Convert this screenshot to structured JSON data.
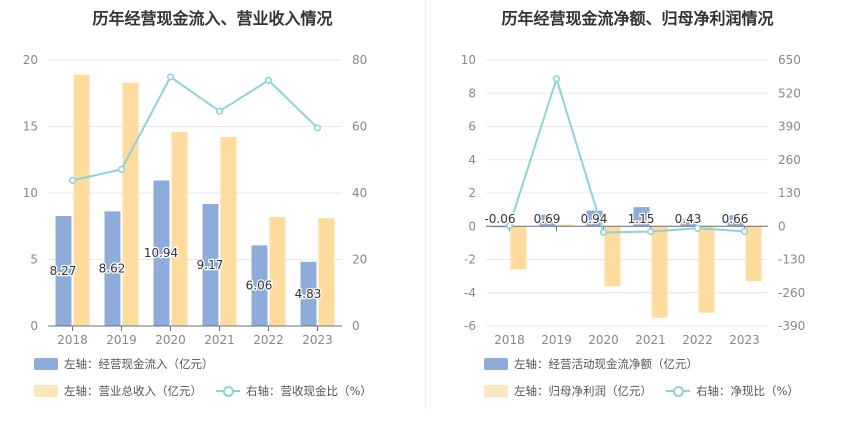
{
  "colors": {
    "bar_primary": "#8eacd9",
    "bar_secondary": "#ffdb9e",
    "line": "#8dd3d6",
    "axis_text": "#888888",
    "grid": "#e8e8e8"
  },
  "chart_data": [
    {
      "type": "bar",
      "title": "历年经营现金流入、营业收入情况",
      "categories": [
        "2018",
        "2019",
        "2020",
        "2021",
        "2022",
        "2023"
      ],
      "y_left_ticks": [
        "0",
        "5",
        "10",
        "15",
        "20"
      ],
      "y_right_ticks": [
        "0",
        "20",
        "40",
        "60",
        "80"
      ],
      "ylim_left": [
        0,
        20
      ],
      "ylim_right": [
        0,
        80
      ],
      "series": [
        {
          "name": "左轴：经营现金流入（亿元）",
          "kind": "bar",
          "axis": "left",
          "color": "#8eacd9",
          "values": [
            8.27,
            8.62,
            10.94,
            9.17,
            6.06,
            4.83
          ],
          "labels": [
            "8.27",
            "8.62",
            "10.94",
            "9.17",
            "6.06",
            "4.83"
          ]
        },
        {
          "name": "左轴：营业总收入（亿元）",
          "kind": "bar",
          "axis": "left",
          "color": "#ffdb9e",
          "values": [
            18.9,
            18.3,
            14.6,
            14.2,
            8.2,
            8.1
          ]
        },
        {
          "name": "右轴：营收现金比（%）",
          "kind": "line",
          "axis": "right",
          "color": "#8dd3d6",
          "values": [
            43.8,
            47.1,
            74.9,
            64.6,
            73.9,
            59.6
          ]
        }
      ]
    },
    {
      "type": "bar",
      "title": "历年经营现金流净额、归母净利润情况",
      "categories": [
        "2018",
        "2019",
        "2020",
        "2021",
        "2022",
        "2023"
      ],
      "y_left_ticks": [
        "-6",
        "-4",
        "-2",
        "0",
        "2",
        "4",
        "6",
        "8",
        "10"
      ],
      "y_right_ticks": [
        "-390",
        "-260",
        "-130",
        "0",
        "130",
        "260",
        "390",
        "520",
        "650"
      ],
      "ylim_left": [
        -6,
        10
      ],
      "ylim_right": [
        -390,
        650
      ],
      "series": [
        {
          "name": "左轴：经营活动现金流净额（亿元）",
          "kind": "bar",
          "axis": "left",
          "color": "#8eacd9",
          "values": [
            -0.06,
            0.69,
            0.94,
            1.15,
            0.43,
            0.66
          ],
          "labels": [
            "-0.06",
            "0.69",
            "0.94",
            "1.15",
            "0.43",
            "0.66"
          ]
        },
        {
          "name": "左轴：归母净利润（亿元）",
          "kind": "bar",
          "axis": "left",
          "color": "#ffdb9e",
          "values": [
            -2.6,
            0.1,
            -3.6,
            -5.5,
            -5.2,
            -3.3
          ]
        },
        {
          "name": "右轴：净现比（%）",
          "kind": "line",
          "axis": "right",
          "color": "#8dd3d6",
          "values": [
            2.3,
            577,
            -24,
            -21,
            -8,
            -20
          ]
        }
      ]
    }
  ]
}
